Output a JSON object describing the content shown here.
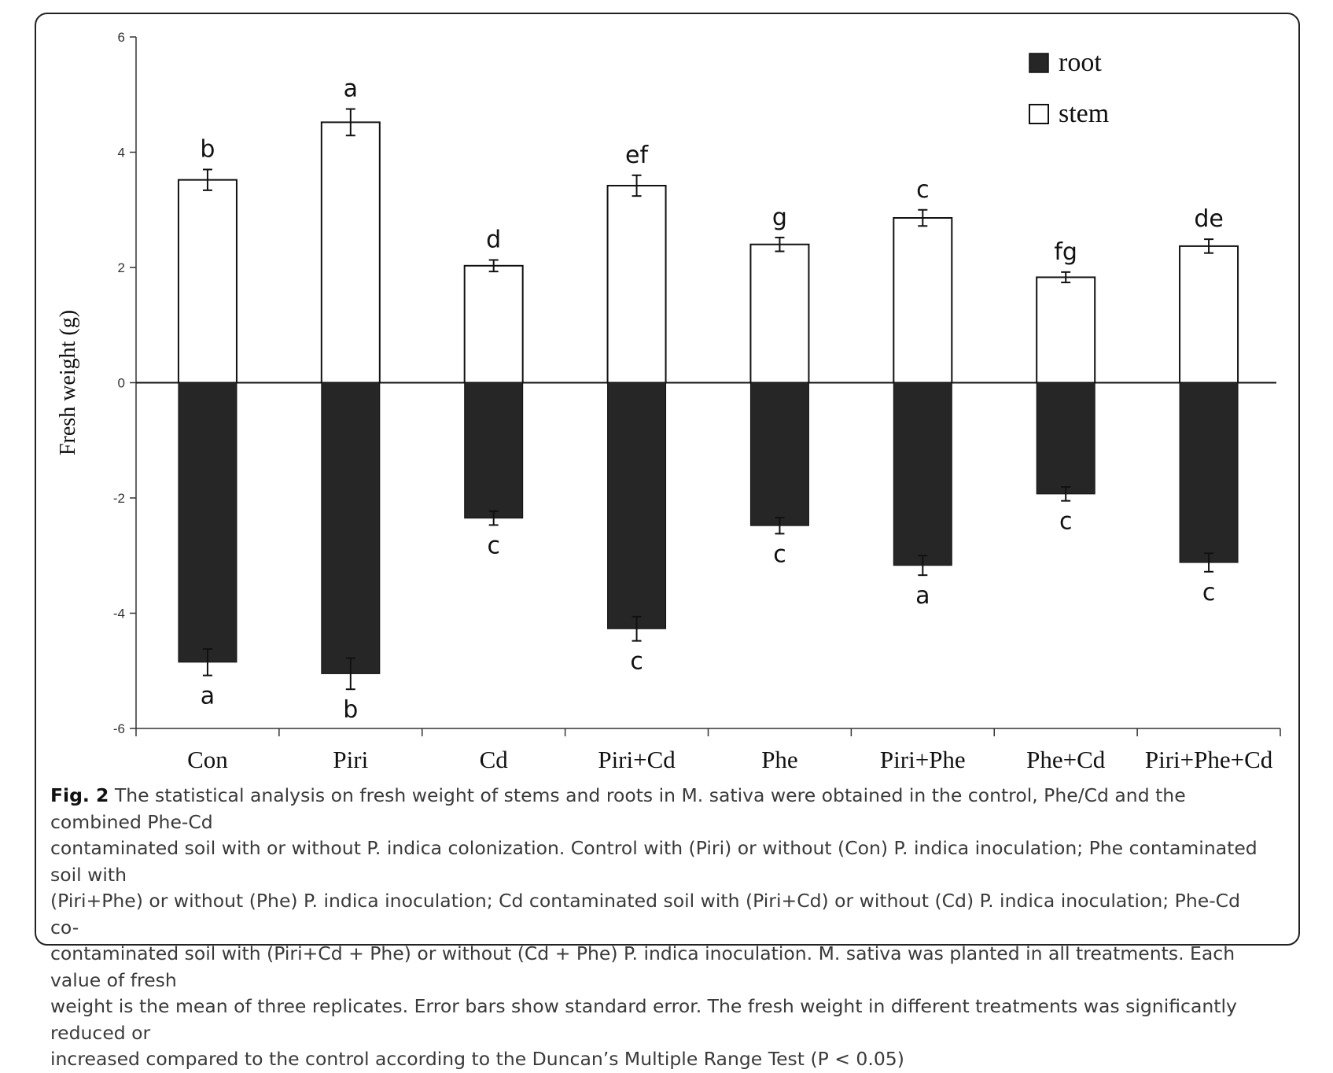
{
  "chart_data": {
    "type": "bar",
    "ylabel": "Fresh weight (g)",
    "ylim": [
      -6,
      6
    ],
    "yticks": [
      "6",
      "4",
      "2",
      "0",
      "-2",
      "-4",
      "-6"
    ],
    "yticks_values": [
      6,
      4,
      2,
      0,
      -2,
      -4,
      -6
    ],
    "categories": [
      "Con",
      "Piri",
      "Cd",
      "Piri+Cd",
      "Phe",
      "Piri+Phe",
      "Phe+Cd",
      "Piri+Phe+Cd"
    ],
    "series": [
      {
        "name": "root",
        "color": "#262626",
        "values": [
          -4.85,
          -5.05,
          -2.35,
          -4.27,
          -2.48,
          -3.17,
          -1.93,
          -3.12
        ],
        "errors": [
          0.23,
          0.27,
          0.12,
          0.21,
          0.14,
          0.17,
          0.12,
          0.16
        ],
        "letters": [
          "a",
          "b",
          "c",
          "c",
          "c",
          "a",
          "c",
          "c"
        ]
      },
      {
        "name": "stem",
        "color": "#ffffff",
        "values": [
          3.52,
          4.52,
          2.03,
          3.42,
          2.4,
          2.86,
          1.83,
          2.37
        ],
        "errors": [
          0.18,
          0.23,
          0.1,
          0.18,
          0.12,
          0.14,
          0.09,
          0.12
        ],
        "letters": [
          "b",
          "a",
          "d",
          "ef",
          "g",
          "c",
          "fg",
          "de"
        ]
      }
    ],
    "legend_position": "top-right",
    "grid": false
  },
  "caption": {
    "fig_label": "Fig. 2",
    "lines": [
      " The statistical analysis on fresh weight of stems and roots in M. sativa were obtained in the control, Phe/Cd and the combined Phe-Cd",
      "contaminated soil with or without P. indica colonization. Control with (Piri) or without (Con) P. indica inoculation; Phe contaminated soil with",
      "(Piri+Phe) or without (Phe) P. indica inoculation; Cd contaminated soil with (Piri+Cd) or without (Cd) P. indica inoculation; Phe-Cd co-",
      "contaminated soil with (Piri+Cd + Phe) or without (Cd + Phe) P. indica inoculation. M. sativa was planted in all treatments. Each value of fresh",
      "weight is the mean of three replicates. Error bars show standard error. The fresh weight in different treatments was significantly reduced or",
      "increased compared to the control according to the Duncan’s Multiple Range Test (P < 0.05)"
    ]
  }
}
